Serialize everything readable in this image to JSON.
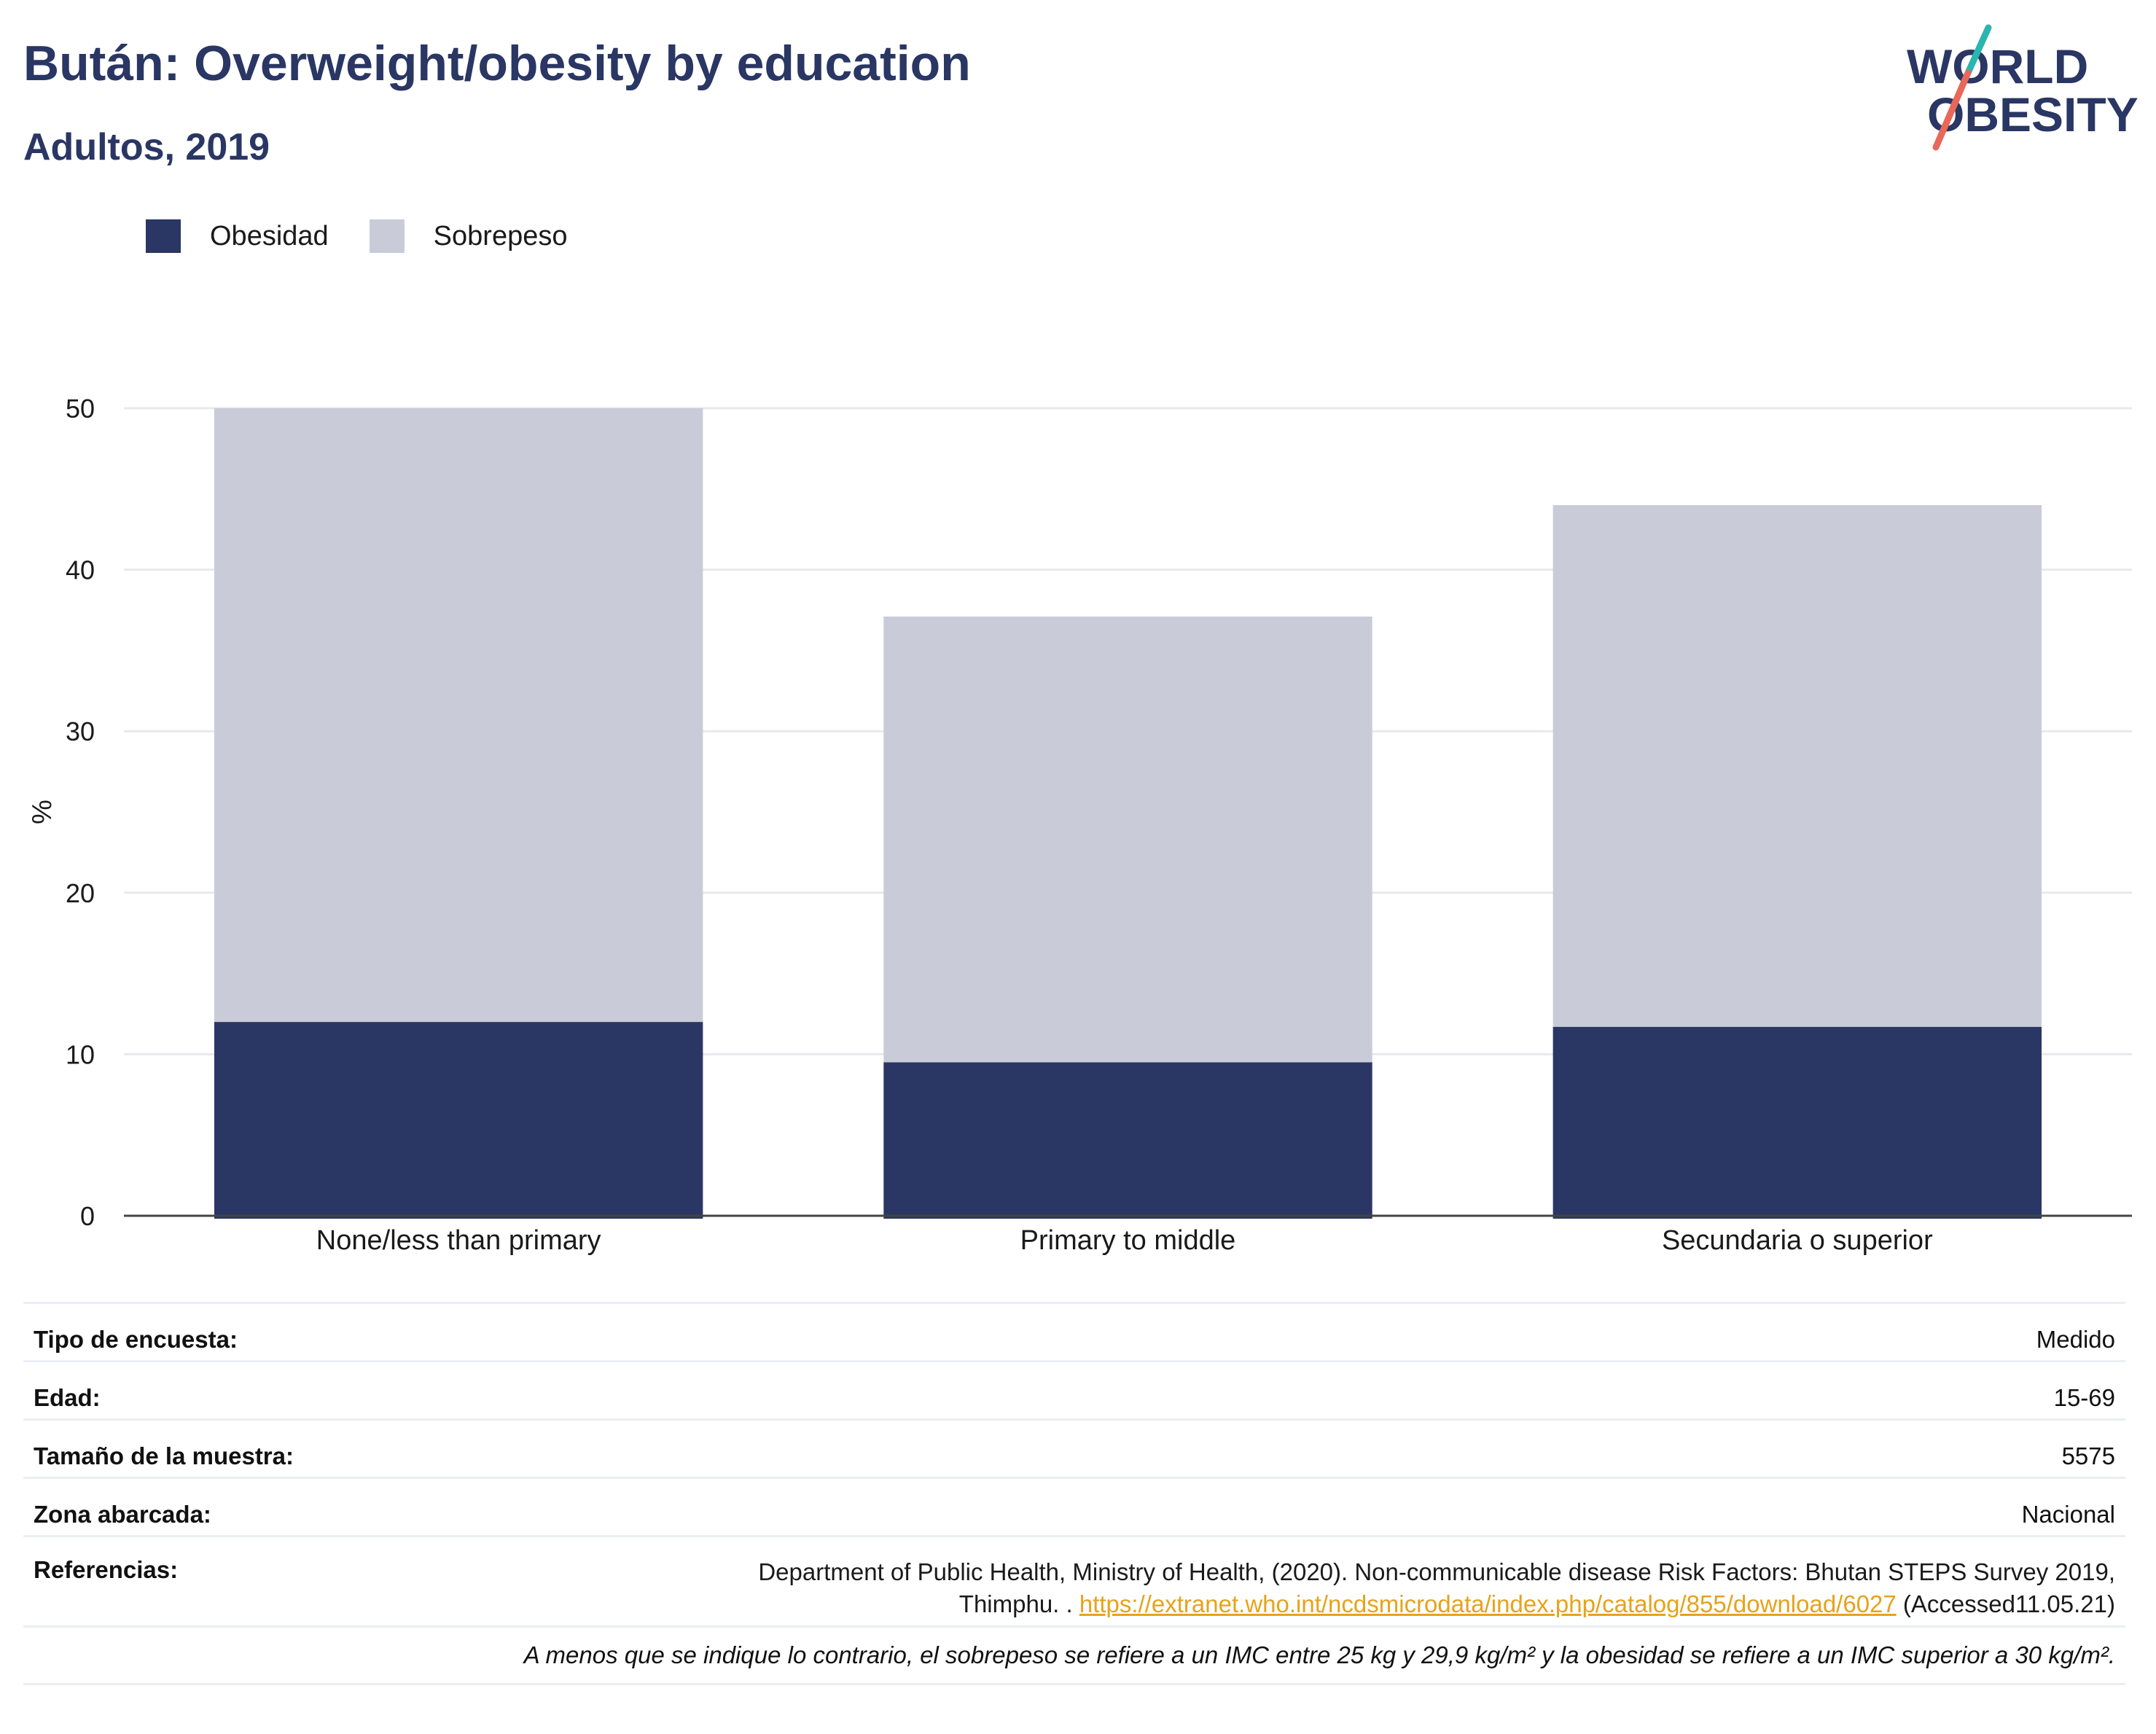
{
  "header": {
    "title": "Bután: Overweight/obesity by education",
    "subtitle": "Adultos, 2019"
  },
  "logo": {
    "line1": "WORLD",
    "line2": "OBESITY"
  },
  "colors": {
    "obesity": "#2a3663",
    "overweight": "#c9ccd8",
    "title": "#2a3663",
    "link": "#e8a21a",
    "logo_teal": "#2bb5b0",
    "logo_coral": "#e8685a"
  },
  "legend": [
    {
      "label": "Obesidad",
      "color": "#2a3663"
    },
    {
      "label": "Sobrepeso",
      "color": "#c9ccd8"
    }
  ],
  "chart_data": {
    "type": "bar",
    "stacked": true,
    "title": "Bután: Overweight/obesity by education",
    "subtitle": "Adultos, 2019",
    "categories": [
      "None/less than primary",
      "Primary to middle",
      "Secundaria o superior"
    ],
    "series": [
      {
        "name": "Obesidad",
        "values": [
          12.0,
          9.5,
          11.7
        ]
      },
      {
        "name": "Sobrepeso",
        "values": [
          38.0,
          27.6,
          32.3
        ]
      }
    ],
    "ylabel": "%",
    "xlabel": "",
    "ylim": [
      0,
      50
    ],
    "yticks": [
      0,
      10,
      20,
      30,
      40,
      50
    ],
    "grid": true,
    "legend_position": "top-left"
  },
  "info": {
    "rows": [
      {
        "label": "Tipo de encuesta:",
        "value": "Medido"
      },
      {
        "label": "Edad:",
        "value": "15-69"
      },
      {
        "label": "Tamaño de la muestra:",
        "value": "5575"
      },
      {
        "label": "Zona abarcada:",
        "value": "Nacional"
      }
    ],
    "references": {
      "label": "Referencias:",
      "text_line1": "Department of Public Health, Ministry of Health, (2020). Non-communicable disease Risk Factors: Bhutan STEPS Survey 2019,",
      "text_line2_prefix": "Thimphu. . ",
      "link": "https://extranet.who.int/ncdsmicrodata/index.php/catalog/855/download/6027",
      "suffix": " (Accessed11.05.21)"
    },
    "note": "A menos que se indique lo contrario, el sobrepeso se refiere a un IMC entre 25 kg y 29,9 kg/m² y la obesidad se refiere a un IMC superior a 30 kg/m²."
  }
}
